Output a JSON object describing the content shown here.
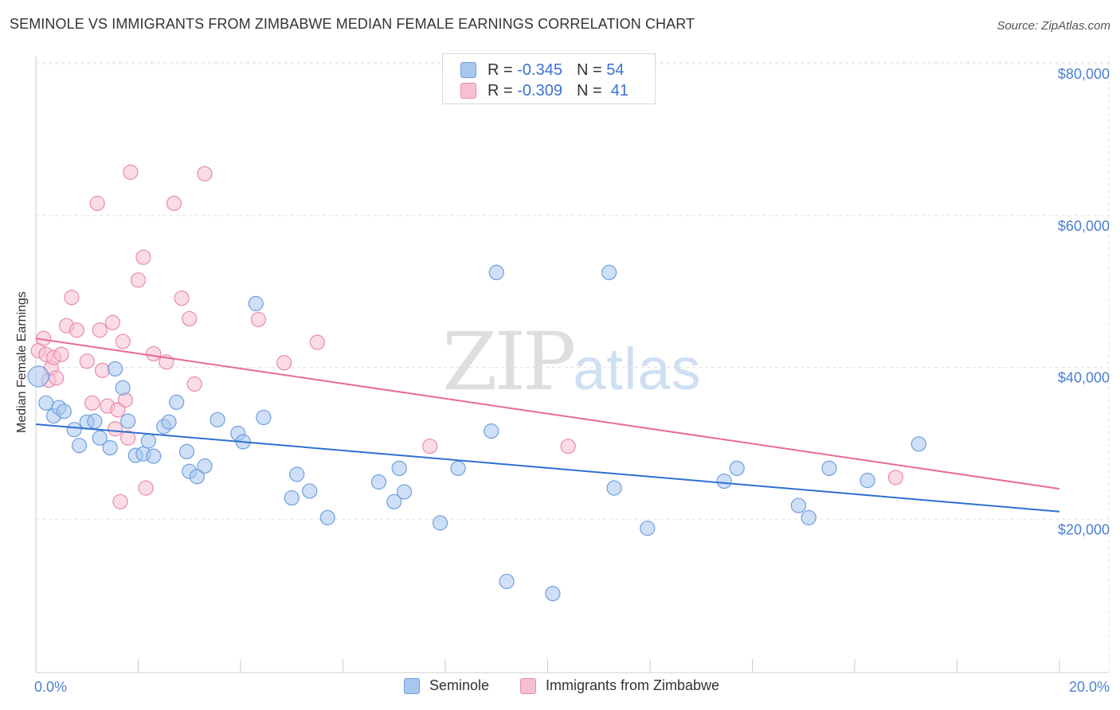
{
  "header": {
    "title": "SEMINOLE VS IMMIGRANTS FROM ZIMBABWE MEDIAN FEMALE EARNINGS CORRELATION CHART",
    "source": "Source: ZipAtlas.com"
  },
  "watermark": {
    "zip": "ZIP",
    "atlas": "atlas"
  },
  "legend": {
    "r_label": "R =",
    "n_label": "N =",
    "rows": [
      {
        "name": "Seminole",
        "r": "-0.345",
        "n": "54",
        "color": "#a8c6ee",
        "stroke": "#6f9ee0"
      },
      {
        "name": "Immigrants from Zimbabwe",
        "r": "-0.309",
        "n": "41",
        "color": "#f7c0d2",
        "stroke": "#e98aaa"
      }
    ]
  },
  "chart_data": {
    "type": "scatter",
    "title": "SEMINOLE VS IMMIGRANTS FROM ZIMBABWE MEDIAN FEMALE EARNINGS CORRELATION CHART",
    "xlabel": "",
    "ylabel": "Median Female Earnings",
    "xlim": [
      0,
      20
    ],
    "ylim": [
      0,
      80000
    ],
    "x_tick_labels": [
      "0.0%",
      "20.0%"
    ],
    "y_ticks": [
      20000,
      40000,
      60000,
      80000
    ],
    "y_tick_labels": [
      "$20,000",
      "$40,000",
      "$60,000",
      "$80,000"
    ],
    "grid": true,
    "legend_position": "top-center",
    "series": [
      {
        "name": "Seminole",
        "color": "#a8c6ee",
        "stroke": "#6f9ee0",
        "line_color": "#2f6fcf",
        "trend": {
          "x": [
            0,
            20
          ],
          "y": [
            32500,
            21000
          ]
        },
        "points": [
          [
            0.05,
            38800
          ],
          [
            0.2,
            35300
          ],
          [
            0.35,
            33600
          ],
          [
            0.45,
            34700
          ],
          [
            0.55,
            34200
          ],
          [
            0.75,
            31800
          ],
          [
            0.85,
            29700
          ],
          [
            1.0,
            32800
          ],
          [
            1.15,
            32900
          ],
          [
            1.25,
            30700
          ],
          [
            1.45,
            29400
          ],
          [
            1.55,
            39800
          ],
          [
            1.7,
            37300
          ],
          [
            1.8,
            32900
          ],
          [
            1.95,
            28400
          ],
          [
            2.1,
            28600
          ],
          [
            2.2,
            30300
          ],
          [
            2.3,
            28300
          ],
          [
            2.5,
            32200
          ],
          [
            2.6,
            32800
          ],
          [
            2.75,
            35400
          ],
          [
            2.95,
            28900
          ],
          [
            3.0,
            26300
          ],
          [
            3.15,
            25600
          ],
          [
            3.3,
            27000
          ],
          [
            3.55,
            33100
          ],
          [
            3.95,
            31300
          ],
          [
            4.05,
            30200
          ],
          [
            4.3,
            48400
          ],
          [
            4.45,
            33400
          ],
          [
            5.0,
            22800
          ],
          [
            5.1,
            25900
          ],
          [
            5.35,
            23700
          ],
          [
            5.7,
            20200
          ],
          [
            6.7,
            24900
          ],
          [
            7.0,
            22300
          ],
          [
            7.1,
            26700
          ],
          [
            7.2,
            23600
          ],
          [
            7.9,
            19500
          ],
          [
            8.25,
            26700
          ],
          [
            8.9,
            31600
          ],
          [
            9.0,
            52500
          ],
          [
            9.2,
            11800
          ],
          [
            10.1,
            10200
          ],
          [
            11.2,
            52500
          ],
          [
            11.3,
            24100
          ],
          [
            11.95,
            18800
          ],
          [
            13.45,
            25000
          ],
          [
            13.7,
            26700
          ],
          [
            14.9,
            21800
          ],
          [
            15.1,
            20200
          ],
          [
            15.5,
            26700
          ],
          [
            16.25,
            25100
          ],
          [
            17.25,
            29900
          ]
        ]
      },
      {
        "name": "Immigrants from Zimbabwe",
        "color": "#f7c0d2",
        "stroke": "#e98aaa",
        "line_color": "#e66b96",
        "trend": {
          "x": [
            0,
            20
          ],
          "y": [
            43800,
            24000
          ]
        },
        "points": [
          [
            0.05,
            42200
          ],
          [
            0.15,
            43800
          ],
          [
            0.2,
            41700
          ],
          [
            0.25,
            38300
          ],
          [
            0.3,
            39900
          ],
          [
            0.35,
            41300
          ],
          [
            0.4,
            38600
          ],
          [
            0.5,
            41700
          ],
          [
            0.6,
            45500
          ],
          [
            0.7,
            49200
          ],
          [
            0.8,
            44900
          ],
          [
            1.0,
            40800
          ],
          [
            1.1,
            35300
          ],
          [
            1.2,
            61600
          ],
          [
            1.25,
            44900
          ],
          [
            1.3,
            39600
          ],
          [
            1.4,
            34900
          ],
          [
            1.5,
            45900
          ],
          [
            1.55,
            31900
          ],
          [
            1.6,
            34400
          ],
          [
            1.65,
            22300
          ],
          [
            1.7,
            43400
          ],
          [
            1.75,
            35700
          ],
          [
            1.8,
            30700
          ],
          [
            1.85,
            65700
          ],
          [
            2.0,
            51500
          ],
          [
            2.1,
            54500
          ],
          [
            2.15,
            24100
          ],
          [
            2.3,
            41800
          ],
          [
            2.55,
            40700
          ],
          [
            2.7,
            61600
          ],
          [
            2.85,
            49100
          ],
          [
            3.0,
            46400
          ],
          [
            3.1,
            37800
          ],
          [
            3.3,
            65500
          ],
          [
            4.35,
            46300
          ],
          [
            4.85,
            40600
          ],
          [
            5.5,
            43300
          ],
          [
            7.7,
            29600
          ],
          [
            10.4,
            29600
          ],
          [
            16.8,
            25500
          ]
        ]
      }
    ]
  }
}
